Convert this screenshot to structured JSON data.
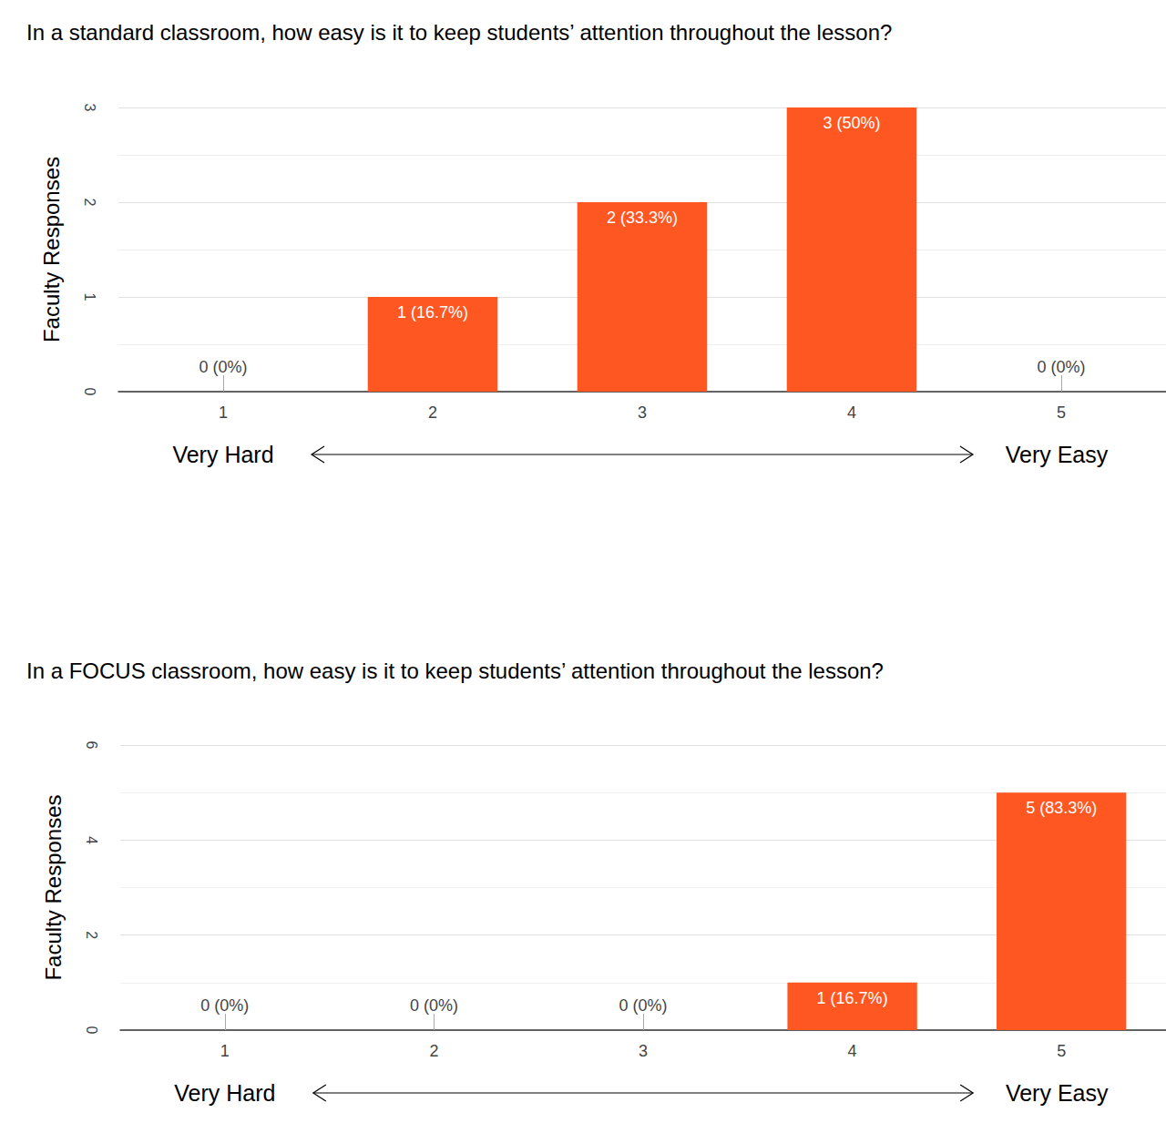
{
  "chart_data": [
    {
      "type": "bar",
      "title": "In a standard classroom, how easy is it to keep students’ attention throughout the lesson?",
      "y_label": "Faculty Responses",
      "categories": [
        "1",
        "2",
        "3",
        "4",
        "5"
      ],
      "values": [
        0,
        1,
        2,
        3,
        0
      ],
      "value_labels": [
        "0 (0%)",
        "1 (16.7%)",
        "2 (33.3%)",
        "3 (50%)",
        "0 (0%)"
      ],
      "color": "#ff5722",
      "ylim": [
        0,
        3
      ],
      "yticks": [
        0,
        1,
        2,
        3
      ],
      "grid": true,
      "data_labels": true,
      "annotations": [
        "Very Hard",
        "Very Easy"
      ]
    },
    {
      "type": "bar",
      "title": "In a FOCUS classroom, how easy is it to keep students’ attention throughout the lesson?",
      "y_label": "Faculty Responses",
      "categories": [
        "1",
        "2",
        "3",
        "4",
        "5"
      ],
      "values": [
        0,
        0,
        0,
        1,
        5
      ],
      "value_labels": [
        "0 (0%)",
        "0 (0%)",
        "0 (0%)",
        "1 (16.7%)",
        "5 (83.3%)"
      ],
      "color": "#ff5722",
      "ylim": [
        0,
        6
      ],
      "yticks": [
        0,
        2,
        4,
        6
      ],
      "grid": true,
      "data_labels": true,
      "annotations": [
        "Very Hard",
        "Very Easy"
      ]
    }
  ]
}
